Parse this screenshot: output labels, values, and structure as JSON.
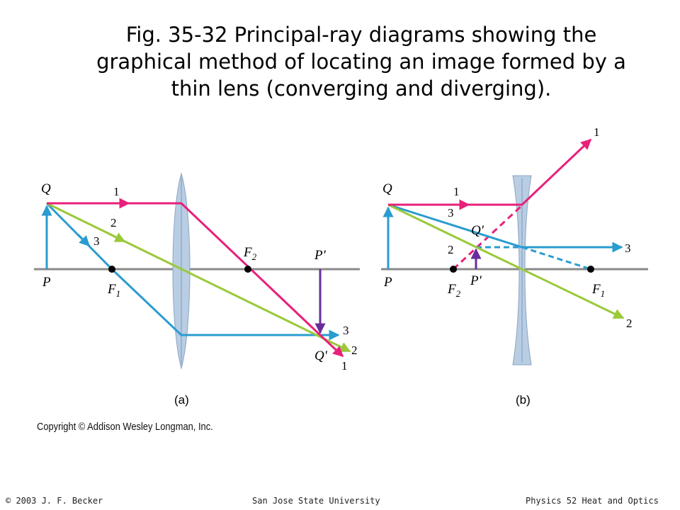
{
  "title": {
    "line1": "Fig. 35-32  Principal-ray diagrams showing the",
    "line2": "graphical method of locating an image formed by a",
    "line3": "thin lens (converging and diverging)."
  },
  "colors": {
    "ray1": "#e8207a",
    "ray2": "#9ac93a",
    "ray3": "#2a9cd0",
    "image_arrow": "#6a2c9a",
    "axis": "#8a8a8a",
    "lens_fill": "#b9cde3"
  },
  "diagram_a": {
    "caption": "(a)",
    "point_Q": "Q",
    "point_P": "P",
    "point_F1": "F",
    "sub_F1": "1",
    "point_F2": "F",
    "sub_F2": "2",
    "point_P_image": "P'",
    "point_Q_image": "Q'",
    "ray1_label": "1",
    "ray2_label": "2",
    "ray3_label": "3",
    "ray1_end_label": "1",
    "ray2_end_label": "2",
    "ray3_end_label": "3"
  },
  "diagram_b": {
    "caption": "(b)",
    "point_Q": "Q",
    "point_P": "P",
    "point_F1": "F",
    "sub_F1": "1",
    "point_F2": "F",
    "sub_F2": "2",
    "point_P_image": "P'",
    "point_Q_image": "Q'",
    "ray1_label": "1",
    "ray2_label": "2",
    "ray3_label": "3",
    "ray1_end_label": "1",
    "ray2_end_label": "2",
    "ray3_end_label": "3"
  },
  "copyright": "Copyright © Addison Wesley Longman, Inc.",
  "footer": {
    "left": "© 2003 J. F. Becker",
    "center": "San Jose State University",
    "right": "Physics 52 Heat and Optics"
  }
}
